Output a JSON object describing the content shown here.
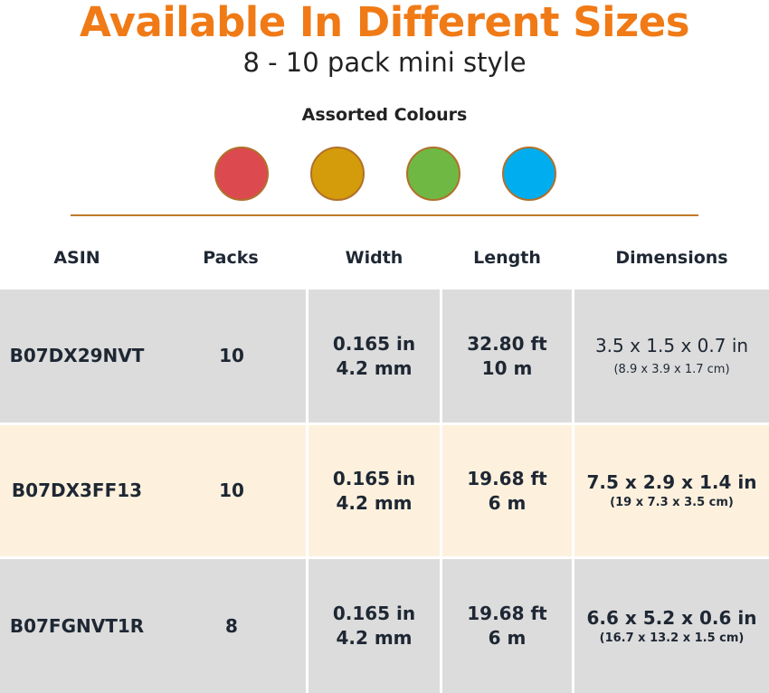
{
  "title": "Available In Different Sizes",
  "subtitle": "8 - 10 pack mini style",
  "colours_label": "Assorted Colours",
  "colours": [
    "#dc4a4f",
    "#d49c0a",
    "#70b844",
    "#00aeef"
  ],
  "headers": [
    "ASIN",
    "Packs",
    "Width",
    "Length",
    "Dimensions"
  ],
  "rows": [
    {
      "asin": "B07DX29NVT",
      "packs": "10",
      "width_in": "0.165 in",
      "width_mm": "4.2 mm",
      "length_ft": "32.80 ft",
      "length_m": "10 m",
      "dim_in": "3.5 x 1.5 x 0.7 in",
      "dim_cm": "(8.9 x 3.9 x 1.7 cm)"
    },
    {
      "asin": "B07DX3FF13",
      "packs": "10",
      "width_in": "0.165 in",
      "width_mm": "4.2 mm",
      "length_ft": "19.68 ft",
      "length_m": "6 m",
      "dim_in": "7.5 x 2.9 x 1.4 in",
      "dim_cm": "(19 x 7.3 x 3.5 cm)"
    },
    {
      "asin": "B07FGNVT1R",
      "packs": "8",
      "width_in": "0.165 in",
      "width_mm": "4.2 mm",
      "length_ft": "19.68 ft",
      "length_m": "6 m",
      "dim_in": "6.6 x 5.2 x 0.6 in",
      "dim_cm": "(16.7 x 13.2 x 1.5 cm)"
    }
  ],
  "row_colors": [
    "#dcdcdc",
    "#fdf1de",
    "#dcdcdc"
  ]
}
